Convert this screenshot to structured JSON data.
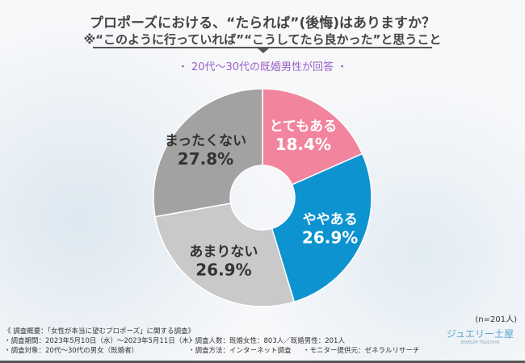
{
  "title": "プロポーズにおける、“たられば”(後悔)はありますか？",
  "note": "※“このように行っていれば”“こうしてたら良かった”と思うこと",
  "subtitle": "・ 20代〜30代の既婚男性が回答 ・",
  "sample": "(n=201人)",
  "footer": {
    "l1": "《 調査概要：「女性が本当に望むプロポーズ」に関する調査》",
    "l2": "・調査期間：2023年5月10日（水）〜2023年5月11日（木）",
    "l3": "・調査人数：既婚女性：803人／既婚男性：201人",
    "l4": "・調査対象：20代〜30代の男女（既婚者）",
    "l5": "・調査方法：インターネット調査",
    "l6": "・モニター提供元：ゼネラルリサーチ"
  },
  "logo": {
    "name": "ジュエリー土屋",
    "sub": "JEWELRY TSUCHIYA"
  },
  "chart_data": {
    "type": "pie",
    "donut": true,
    "categories": [
      "とてもある",
      "ややある",
      "あまりない",
      "まったくない"
    ],
    "values": [
      18.4,
      26.9,
      26.9,
      27.8
    ],
    "value_labels": [
      "18.4%",
      "26.9%",
      "26.9%",
      "27.8%"
    ],
    "colors": [
      "#f2849e",
      "#0d93cf",
      "#c9c9c9",
      "#a2a2a2"
    ],
    "label_colors": [
      "#ffffff",
      "#ffffff",
      "#333333",
      "#333333"
    ]
  }
}
